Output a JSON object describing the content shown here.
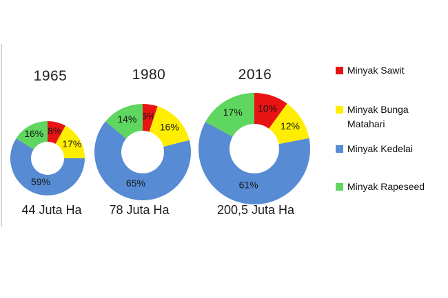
{
  "chart_data": {
    "type": "pie",
    "subtype": "donut",
    "value_format": "percent",
    "legend_position": "right",
    "series": [
      {
        "name": "Minyak Sawit",
        "color": "#E81414"
      },
      {
        "name": "Minyak Bunga Matahari",
        "color": "#FFEE00"
      },
      {
        "name": "Minyak Kedelai",
        "color": "#578BD3"
      },
      {
        "name": "Minyak Rapeseed",
        "color": "#5FD65F"
      }
    ],
    "charts": [
      {
        "title": "1965",
        "values": [
          8,
          17,
          59,
          16
        ],
        "total_label": "44 Juta Ha"
      },
      {
        "title": "1980",
        "values": [
          5,
          16,
          65,
          14
        ],
        "total_label": "78 Juta Ha"
      },
      {
        "title": "2016",
        "values": [
          10,
          12,
          61,
          17
        ],
        "total_label": "200,5 Juta Ha"
      }
    ]
  }
}
